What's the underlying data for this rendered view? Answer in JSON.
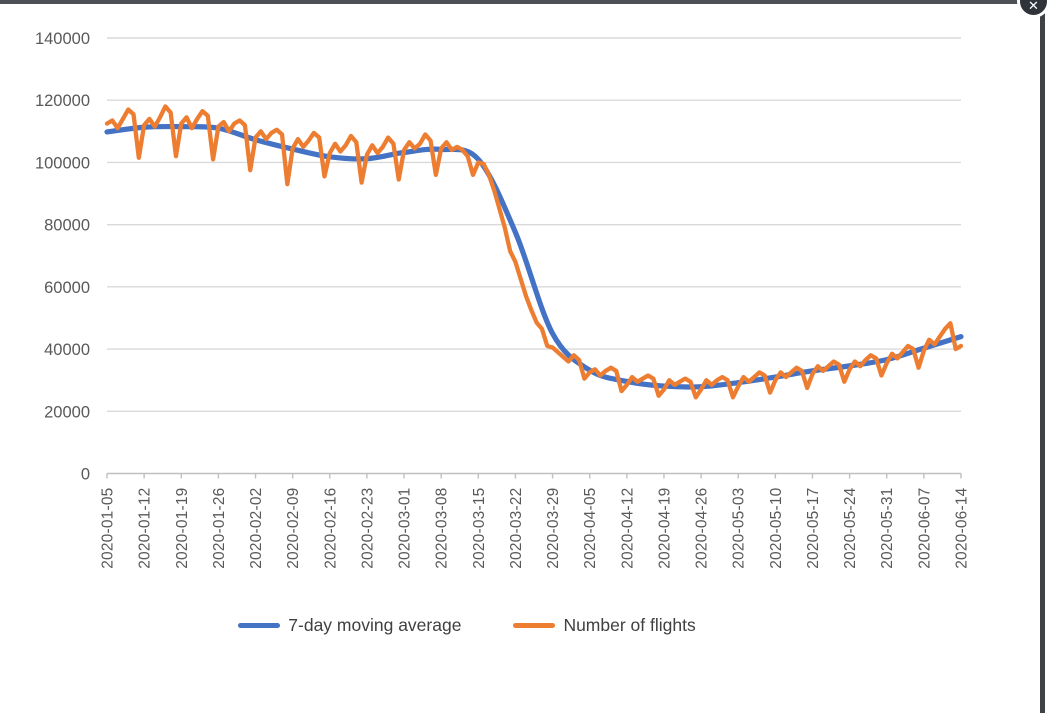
{
  "window": {
    "close_icon": "✕"
  },
  "chart_data": {
    "type": "line",
    "title": "",
    "xlabel": "",
    "ylabel": "",
    "ylim": [
      0,
      140000
    ],
    "y_ticks": [
      0,
      20000,
      40000,
      60000,
      80000,
      100000,
      120000,
      140000
    ],
    "grid": true,
    "legend_position": "bottom",
    "gridline_color": "#d9d9d9",
    "axis_color": "#bfbfbf",
    "tick_text_color": "#595959",
    "x_labels": [
      "2020-01-05",
      "2020-01-12",
      "2020-01-19",
      "2020-01-26",
      "2020-02-02",
      "2020-02-09",
      "2020-02-16",
      "2020-02-23",
      "2020-03-01",
      "2020-03-08",
      "2020-03-15",
      "2020-03-22",
      "2020-03-29",
      "2020-04-05",
      "2020-04-12",
      "2020-04-19",
      "2020-04-26",
      "2020-05-03",
      "2020-05-10",
      "2020-05-17",
      "2020-05-24",
      "2020-05-31",
      "2020-06-07",
      "2020-06-14"
    ],
    "series": [
      {
        "name": "7-day moving average",
        "color": "#4472c4",
        "style": "smooth",
        "sampling": "weekly",
        "x_dates": [
          "2020-01-05",
          "2020-01-12",
          "2020-01-19",
          "2020-01-26",
          "2020-02-02",
          "2020-02-09",
          "2020-02-16",
          "2020-02-23",
          "2020-03-01",
          "2020-03-08",
          "2020-03-15",
          "2020-03-22",
          "2020-03-29",
          "2020-04-05",
          "2020-04-12",
          "2020-04-19",
          "2020-04-26",
          "2020-05-03",
          "2020-05-10",
          "2020-05-17",
          "2020-05-24",
          "2020-05-31",
          "2020-06-07",
          "2020-06-14"
        ],
        "values": [
          109800,
          111300,
          111500,
          111000,
          107300,
          104300,
          101800,
          101200,
          103200,
          104200,
          101000,
          77500,
          45000,
          33200,
          29600,
          28100,
          27900,
          29200,
          31000,
          33000,
          34600,
          36600,
          40300,
          44000
        ]
      },
      {
        "name": "Number of flights",
        "color": "#ed7d31",
        "style": "polyline",
        "sampling": "daily",
        "start_date": "2020-01-05",
        "end_date": "2020-06-14",
        "values": [
          112500,
          113500,
          111000,
          114000,
          117000,
          115500,
          101500,
          112000,
          114000,
          111500,
          114500,
          118000,
          116000,
          102000,
          112500,
          114500,
          111000,
          114000,
          116500,
          115000,
          101000,
          111500,
          113000,
          110000,
          112500,
          113500,
          112000,
          97500,
          108000,
          110000,
          107500,
          109500,
          110500,
          109000,
          93000,
          104500,
          107500,
          105000,
          107000,
          109500,
          108000,
          95500,
          103000,
          106000,
          103500,
          105500,
          108500,
          106500,
          93500,
          102500,
          105500,
          103000,
          105000,
          108000,
          106000,
          94500,
          104000,
          106500,
          104500,
          106000,
          109000,
          107000,
          96000,
          104500,
          106500,
          104000,
          105000,
          104000,
          102000,
          96000,
          100000,
          99500,
          96000,
          91000,
          85000,
          79000,
          71500,
          68000,
          62500,
          57000,
          52500,
          48500,
          46500,
          41000,
          40500,
          39000,
          37500,
          36000,
          38000,
          36500,
          30500,
          32500,
          33500,
          31500,
          33000,
          34000,
          33000,
          26500,
          28500,
          31000,
          29500,
          30500,
          31500,
          30500,
          25000,
          27000,
          30000,
          28500,
          29500,
          30500,
          29500,
          24500,
          27000,
          30000,
          28500,
          30000,
          31000,
          30000,
          24500,
          28000,
          31000,
          29500,
          31000,
          32500,
          31500,
          26000,
          30000,
          32500,
          31000,
          32500,
          34000,
          33000,
          27500,
          32000,
          34500,
          33000,
          34500,
          36000,
          35000,
          29500,
          33500,
          36000,
          34500,
          36500,
          38000,
          37000,
          31500,
          35500,
          38500,
          37000,
          39000,
          41000,
          40000,
          34000,
          39500,
          43000,
          41500,
          44000,
          46500,
          48300,
          40000,
          41000
        ]
      }
    ]
  }
}
